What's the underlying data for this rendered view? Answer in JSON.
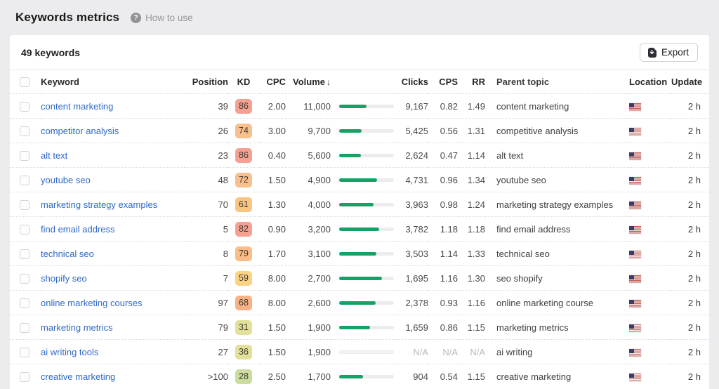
{
  "page": {
    "title": "Keywords metrics",
    "help_label": "How to use"
  },
  "toolbar": {
    "count_label": "49 keywords",
    "export_label": "Export"
  },
  "colors": {
    "bar_green": "#16a266",
    "link_blue": "#3069c8",
    "na_gray": "#b7bac0"
  },
  "table": {
    "headers": {
      "keyword": "Keyword",
      "position": "Position",
      "kd": "KD",
      "cpc": "CPC",
      "volume": "Volume",
      "volume_sort_icon": "↓",
      "clicks": "Clicks",
      "cps": "CPS",
      "rr": "RR",
      "parent_topic": "Parent topic",
      "location": "Location",
      "update": "Update"
    },
    "rows": [
      {
        "keyword": "content marketing",
        "position": "39",
        "kd": "86",
        "kd_color": "#f4a093",
        "cpc": "2.00",
        "volume": "11,000",
        "volume_fill_pct": 50,
        "clicks": "9,167",
        "cps": "0.82",
        "rr": "1.49",
        "parent_topic": "content marketing",
        "location_icon": "us-flag",
        "update": "2 h"
      },
      {
        "keyword": "competitor analysis",
        "position": "26",
        "kd": "74",
        "kd_color": "#f8c08c",
        "cpc": "3.00",
        "volume": "9,700",
        "volume_fill_pct": 41,
        "clicks": "5,425",
        "cps": "0.56",
        "rr": "1.31",
        "parent_topic": "competitive analysis",
        "location_icon": "us-flag",
        "update": "2 h"
      },
      {
        "keyword": "alt text",
        "position": "23",
        "kd": "86",
        "kd_color": "#f4a093",
        "cpc": "0.40",
        "volume": "5,600",
        "volume_fill_pct": 40,
        "clicks": "2,624",
        "cps": "0.47",
        "rr": "1.14",
        "parent_topic": "alt text",
        "location_icon": "us-flag",
        "update": "2 h"
      },
      {
        "keyword": "youtube seo",
        "position": "48",
        "kd": "72",
        "kd_color": "#f8c08c",
        "cpc": "1.50",
        "volume": "4,900",
        "volume_fill_pct": 69,
        "clicks": "4,731",
        "cps": "0.96",
        "rr": "1.34",
        "parent_topic": "youtube seo",
        "location_icon": "us-flag",
        "update": "2 h"
      },
      {
        "keyword": "marketing strategy examples",
        "position": "70",
        "kd": "61",
        "kd_color": "#f9c682",
        "cpc": "1.30",
        "volume": "4,000",
        "volume_fill_pct": 63,
        "clicks": "3,963",
        "cps": "0.98",
        "rr": "1.24",
        "parent_topic": "marketing strategy examples",
        "location_icon": "us-flag",
        "update": "2 h"
      },
      {
        "keyword": "find email address",
        "position": "5",
        "kd": "82",
        "kd_color": "#f4a093",
        "cpc": "0.90",
        "volume": "3,200",
        "volume_fill_pct": 73,
        "clicks": "3,782",
        "cps": "1.18",
        "rr": "1.18",
        "parent_topic": "find email address",
        "location_icon": "us-flag",
        "update": "2 h"
      },
      {
        "keyword": "technical seo",
        "position": "8",
        "kd": "79",
        "kd_color": "#f8bd89",
        "cpc": "1.70",
        "volume": "3,100",
        "volume_fill_pct": 68,
        "clicks": "3,503",
        "cps": "1.14",
        "rr": "1.33",
        "parent_topic": "technical seo",
        "location_icon": "us-flag",
        "update": "2 h"
      },
      {
        "keyword": "shopify seo",
        "position": "7",
        "kd": "59",
        "kd_color": "#fad383",
        "cpc": "8.00",
        "volume": "2,700",
        "volume_fill_pct": 78,
        "clicks": "1,695",
        "cps": "1.16",
        "rr": "1.30",
        "parent_topic": "seo shopify",
        "location_icon": "us-flag",
        "update": "2 h"
      },
      {
        "keyword": "online marketing courses",
        "position": "97",
        "kd": "68",
        "kd_color": "#f8b285",
        "cpc": "8.00",
        "volume": "2,600",
        "volume_fill_pct": 67,
        "clicks": "2,378",
        "cps": "0.93",
        "rr": "1.16",
        "parent_topic": "online marketing course",
        "location_icon": "us-flag",
        "update": "2 h"
      },
      {
        "keyword": "marketing metrics",
        "position": "79",
        "kd": "31",
        "kd_color": "#e1e19a",
        "cpc": "1.50",
        "volume": "1,900",
        "volume_fill_pct": 56,
        "clicks": "1,659",
        "cps": "0.86",
        "rr": "1.15",
        "parent_topic": "marketing metrics",
        "location_icon": "us-flag",
        "update": "2 h"
      },
      {
        "keyword": "ai writing tools",
        "position": "27",
        "kd": "36",
        "kd_color": "#e1e19a",
        "cpc": "1.50",
        "volume": "1,900",
        "volume_fill_pct": 0,
        "clicks": "N/A",
        "cps": "N/A",
        "rr": "N/A",
        "parent_topic": "ai writing",
        "location_icon": "us-flag",
        "update": "2 h"
      },
      {
        "keyword": "creative marketing",
        "position": ">100",
        "kd": "28",
        "kd_color": "#cbdc9f",
        "cpc": "2.50",
        "volume": "1,700",
        "volume_fill_pct": 44,
        "clicks": "904",
        "cps": "0.54",
        "rr": "1.15",
        "parent_topic": "creative marketing",
        "location_icon": "us-flag",
        "update": "2 h"
      }
    ]
  }
}
